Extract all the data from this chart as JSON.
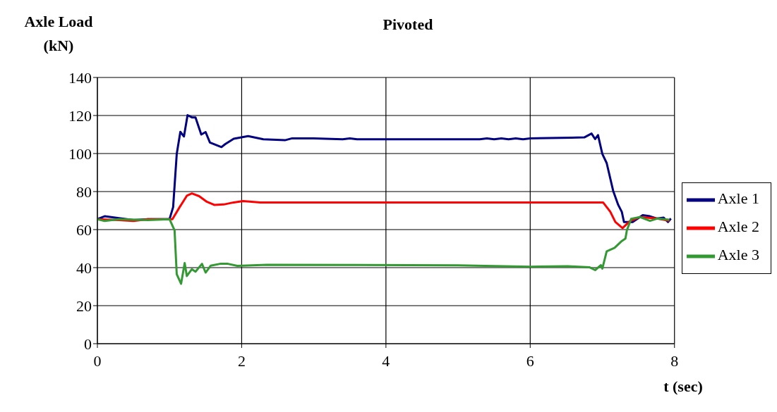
{
  "chart_data": {
    "type": "line",
    "title": "Pivoted",
    "xlabel": "t (sec)",
    "ylabel": "Axle Load (kN)",
    "xlim": [
      0,
      8
    ],
    "xticks": [
      0,
      2,
      4,
      6,
      8
    ],
    "ylim": [
      0,
      140
    ],
    "yticks": [
      0,
      20,
      40,
      60,
      80,
      100,
      120,
      140
    ],
    "grid": true,
    "legend": "right",
    "marker": "none",
    "line_style": "solid",
    "series": [
      {
        "name": "Axle 1",
        "color": "#000080",
        "x": [
          0,
          0.1,
          0.3,
          0.5,
          0.7,
          1.0,
          1.05,
          1.1,
          1.15,
          1.2,
          1.25,
          1.31,
          1.36,
          1.44,
          1.5,
          1.56,
          1.72,
          1.77,
          1.89,
          2.09,
          2.3,
          2.6,
          2.7,
          3.0,
          3.4,
          3.5,
          3.6,
          5.3,
          5.4,
          5.5,
          5.6,
          5.7,
          5.8,
          5.9,
          6.0,
          6.57,
          6.75,
          6.85,
          6.9,
          6.94,
          7.0,
          7.06,
          7.15,
          7.22,
          7.27,
          7.3,
          7.42,
          7.56,
          7.66,
          7.76,
          7.85,
          7.91,
          7.95
        ],
        "values": [
          65.5,
          67,
          66,
          65,
          65.5,
          65.5,
          71.8,
          99.8,
          111.4,
          109,
          120.2,
          119,
          119,
          110,
          111.3,
          105.8,
          103.4,
          104.9,
          107.8,
          109.2,
          107.5,
          107,
          108,
          108,
          107.5,
          108,
          107.5,
          107.5,
          108,
          107.5,
          108,
          107.5,
          108,
          107.5,
          108,
          108.3,
          108.5,
          110.5,
          107.6,
          109.7,
          99.8,
          95,
          80.4,
          73,
          69.3,
          64,
          64,
          67.6,
          67,
          65.8,
          66.3,
          64,
          65.8
        ]
      },
      {
        "name": "Axle 2",
        "color": "#ff0000",
        "x": [
          0,
          0.3,
          0.5,
          0.7,
          1.04,
          1.14,
          1.24,
          1.31,
          1.41,
          1.51,
          1.62,
          1.75,
          1.89,
          2.02,
          2.26,
          7.01,
          7.11,
          7.18,
          7.28,
          7.38,
          7.52,
          7.76,
          7.93
        ],
        "values": [
          65.5,
          65,
          64.5,
          65.5,
          65.5,
          71.8,
          77.8,
          79,
          77.6,
          74.8,
          73,
          73.2,
          74.3,
          75,
          74.3,
          74.3,
          69.4,
          64,
          60.8,
          64.4,
          66.6,
          65.8,
          64.6
        ]
      },
      {
        "name": "Axle 3",
        "color": "#339933",
        "x": [
          0,
          0.1,
          0.3,
          0.7,
          1.0,
          1.07,
          1.1,
          1.16,
          1.21,
          1.24,
          1.31,
          1.36,
          1.45,
          1.5,
          1.57,
          1.7,
          1.81,
          1.94,
          2.35,
          5.0,
          6.0,
          6.52,
          6.82,
          6.9,
          6.98,
          7.0,
          7.06,
          7.17,
          7.27,
          7.32,
          7.34,
          7.4,
          7.52,
          7.66,
          7.76,
          7.93
        ],
        "values": [
          65.5,
          64.5,
          65.5,
          65,
          65.5,
          59.6,
          36.5,
          31.5,
          42.4,
          35.6,
          39.2,
          37.9,
          42,
          37.4,
          41,
          42,
          42,
          40.9,
          41.5,
          41.2,
          40.5,
          40.7,
          40.2,
          38.7,
          41.3,
          39.5,
          48.6,
          50.4,
          54,
          55.3,
          59.6,
          65.7,
          66.6,
          64.6,
          65.8,
          65.2
        ]
      }
    ]
  }
}
